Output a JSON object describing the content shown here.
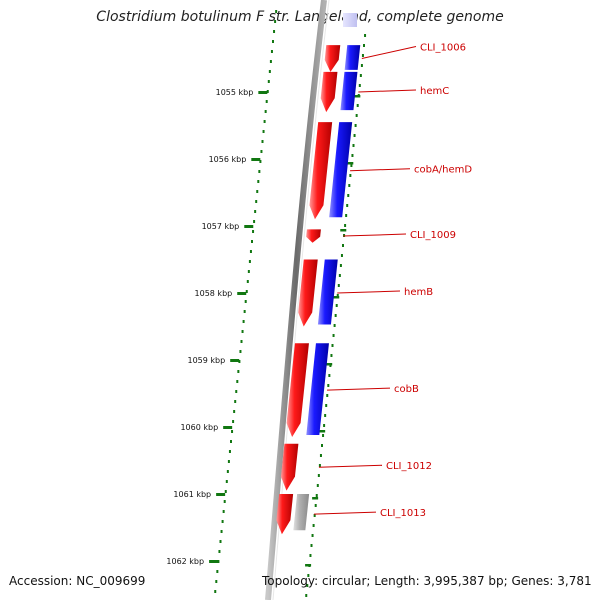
{
  "title": "Clostridium botulinum F str. Langeland, complete genome",
  "footer": {
    "accession": "Accession: NC_009699",
    "topology": "Topology: circular; Length: 3,995,387 bp; Genes: 3,781"
  },
  "colors": {
    "reverse_strand": "#ee0000",
    "forward_strand": "#0000ee",
    "other_feature": "#aaaaaa",
    "ticks": "#117711",
    "labels": "#cc0000",
    "backbone": "#777777"
  },
  "scale": {
    "unit": "kbp",
    "ticks": [
      {
        "label": "1055 kbp",
        "value": 1055
      },
      {
        "label": "1056 kbp",
        "value": 1056
      },
      {
        "label": "1057 kbp",
        "value": 1057
      },
      {
        "label": "1058 kbp",
        "value": 1058
      },
      {
        "label": "1059 kbp",
        "value": 1059
      },
      {
        "label": "1060 kbp",
        "value": 1060
      },
      {
        "label": "1061 kbp",
        "value": 1061
      },
      {
        "label": "1062 kbp",
        "value": 1062
      }
    ]
  },
  "genes": [
    {
      "name": "CLI_1006",
      "strand": "both",
      "start_kbp": 1054.3,
      "end_kbp": 1054.7
    },
    {
      "name": "hemC",
      "strand": "both",
      "start_kbp": 1054.7,
      "end_kbp": 1055.3
    },
    {
      "name": "cobA/hemD",
      "strand": "both",
      "start_kbp": 1055.45,
      "end_kbp": 1056.9
    },
    {
      "name": "CLI_1009",
      "strand": "reverse",
      "start_kbp": 1057.05,
      "end_kbp": 1057.25
    },
    {
      "name": "hemB",
      "strand": "both",
      "start_kbp": 1057.5,
      "end_kbp": 1058.5
    },
    {
      "name": "cobB",
      "strand": "both",
      "start_kbp": 1058.75,
      "end_kbp": 1060.15
    },
    {
      "name": "CLI_1012",
      "strand": "reverse",
      "start_kbp": 1060.25,
      "end_kbp": 1060.95
    },
    {
      "name": "CLI_1013",
      "strand": "reverse_other",
      "start_kbp": 1061.0,
      "end_kbp": 1061.6
    }
  ]
}
